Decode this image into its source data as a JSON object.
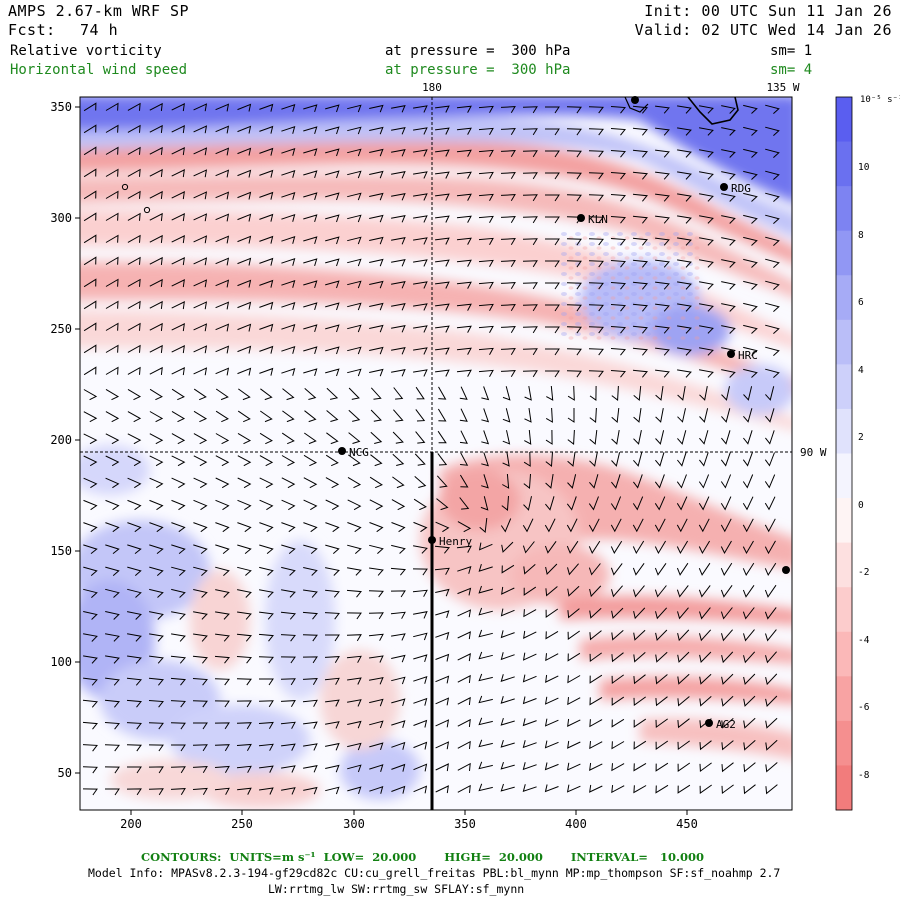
{
  "header": {
    "model": "AMPS 2.67-km WRF SP",
    "fcst_label": "Fcst:",
    "fcst_value": "74 h",
    "init": "Init: 00 UTC Sun 11 Jan 26",
    "valid": "Valid: 02 UTC Wed 14 Jan 26",
    "field1": {
      "name": "Relative vorticity",
      "level": "at pressure =  300 hPa",
      "sm": "sm= 1"
    },
    "field2": {
      "name": "Horizontal wind speed",
      "level": "at pressure =  300 hPa",
      "sm": "sm= 4"
    }
  },
  "map": {
    "meridian_180": "180",
    "meridian_135w": "135 W",
    "parallel_90w": "90 W",
    "x_ticks": [
      "200",
      "250",
      "300",
      "350",
      "400",
      "450"
    ],
    "y_ticks": [
      "350",
      "300",
      "250",
      "200",
      "150",
      "100",
      "50"
    ],
    "stations": [
      {
        "name": "RDG"
      },
      {
        "name": "KLN"
      },
      {
        "name": "HRC"
      },
      {
        "name": "NCG"
      },
      {
        "name": "Henry"
      },
      {
        "name": "AG2"
      }
    ]
  },
  "colorbar": {
    "units": "10⁻⁵ s⁻¹",
    "labels": [
      "10",
      "8",
      "6",
      "4",
      "2",
      "0",
      "-2",
      "-4",
      "-6",
      "-8"
    ],
    "colors": [
      "#5a5ef0",
      "#6a70f0",
      "#7d83f2",
      "#9197f4",
      "#a6abf6",
      "#babef8",
      "#cdd0fa",
      "#e0e2fc",
      "#f4f4fe",
      "#fef4f4",
      "#fde0e0",
      "#fccccc",
      "#fbb8b8",
      "#f8a3a3",
      "#f58f8f",
      "#f27c7c"
    ]
  },
  "footer": {
    "contours": "CONTOURS:  UNITS=m s⁻¹  LOW=  20.000       HIGH=  20.000       INTERVAL=   10.000",
    "model_info": "Model Info: MPASv8.2.3-194-gf29cd82c CU:cu_grell_freitas PBL:bl_mynn MP:mp_thompson SF:sf_noahmp 2.7",
    "schemes": "LW:rrtmg_lw SW:rrtmg_sw SFLAY:sf_mynn"
  },
  "chart_data": {
    "type": "map",
    "title": "Relative vorticity and horizontal wind speed at 300 hPa",
    "xlim": [
      175,
      495
    ],
    "ylim": [
      33,
      355
    ],
    "x_ticks": [
      200,
      250,
      300,
      350,
      400,
      450
    ],
    "y_ticks": [
      50,
      100,
      150,
      200,
      250,
      300,
      350
    ],
    "meridian_180_x": 334,
    "meridian_135w_x": 471,
    "parallel_90w_y": 195,
    "cross_section": {
      "x": 334,
      "y0": 33,
      "y1": 195
    },
    "stations": [
      {
        "name": "RDG",
        "x": 467,
        "y": 314
      },
      {
        "name": "KLN",
        "x": 402,
        "y": 300
      },
      {
        "name": "HRC",
        "x": 469,
        "y": 239
      },
      {
        "name": "NCG",
        "x": 293,
        "y": 195
      },
      {
        "name": "Henry",
        "x": 334,
        "y": 155
      },
      {
        "name": "AG2",
        "x": 460,
        "y": 72
      }
    ],
    "vorticity_range": [
      -9,
      11
    ],
    "vorticity_units": "1e-5 s-1"
  }
}
